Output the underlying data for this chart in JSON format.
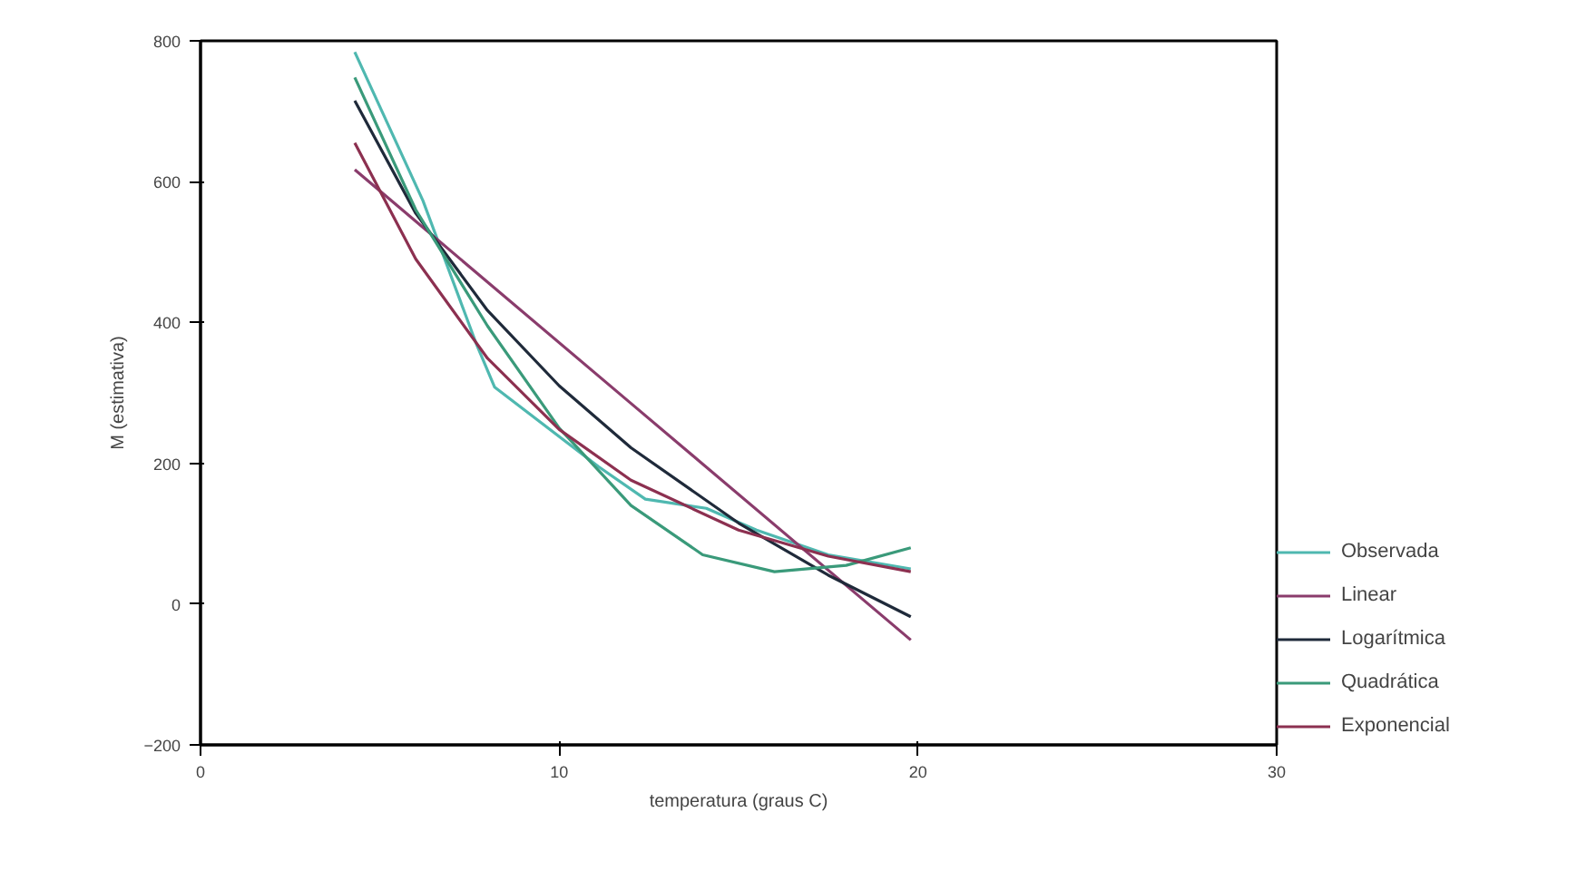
{
  "chart_data": {
    "type": "line",
    "xlabel": "temperatura (graus C)",
    "ylabel": "M (estimativa)",
    "xlim": [
      0,
      30
    ],
    "ylim": [
      -200,
      800
    ],
    "xticks": [
      0,
      10,
      20,
      30
    ],
    "yticks": [
      -200,
      0,
      200,
      400,
      600,
      800
    ],
    "grid": false,
    "legend": "right",
    "marker": "none",
    "line_style": "solid",
    "series": [
      {
        "name": "Observada",
        "color": "#4fb8b0",
        "x": [
          4.3,
          6.2,
          7.7,
          8.2,
          11.1,
          12.4,
          14.1,
          15.5,
          17.5,
          19.8
        ],
        "values": [
          784,
          573,
          368,
          308,
          195,
          149,
          136,
          105,
          70,
          50
        ]
      },
      {
        "name": "Linear",
        "color": "#8a3c6c",
        "x": [
          4.3,
          12,
          19.8
        ],
        "values": [
          617,
          285,
          -51
        ]
      },
      {
        "name": "Logarítmica",
        "color": "#1f2a3a",
        "x": [
          4.3,
          6,
          8,
          10,
          12,
          15,
          17.5,
          19.8
        ],
        "values": [
          715,
          555,
          417,
          310,
          222,
          115,
          41,
          -18
        ]
      },
      {
        "name": "Quadrática",
        "color": "#3a9a7a",
        "x": [
          4.3,
          6,
          8,
          10,
          12,
          14,
          16,
          18,
          19.8
        ],
        "values": [
          748,
          560,
          395,
          250,
          140,
          70,
          46,
          55,
          80
        ]
      },
      {
        "name": "Exponencial",
        "color": "#8c3050",
        "x": [
          4.3,
          6,
          8,
          10,
          12,
          15,
          17.5,
          19.8
        ],
        "values": [
          655,
          490,
          349,
          248,
          176,
          105,
          68,
          46
        ]
      }
    ]
  }
}
